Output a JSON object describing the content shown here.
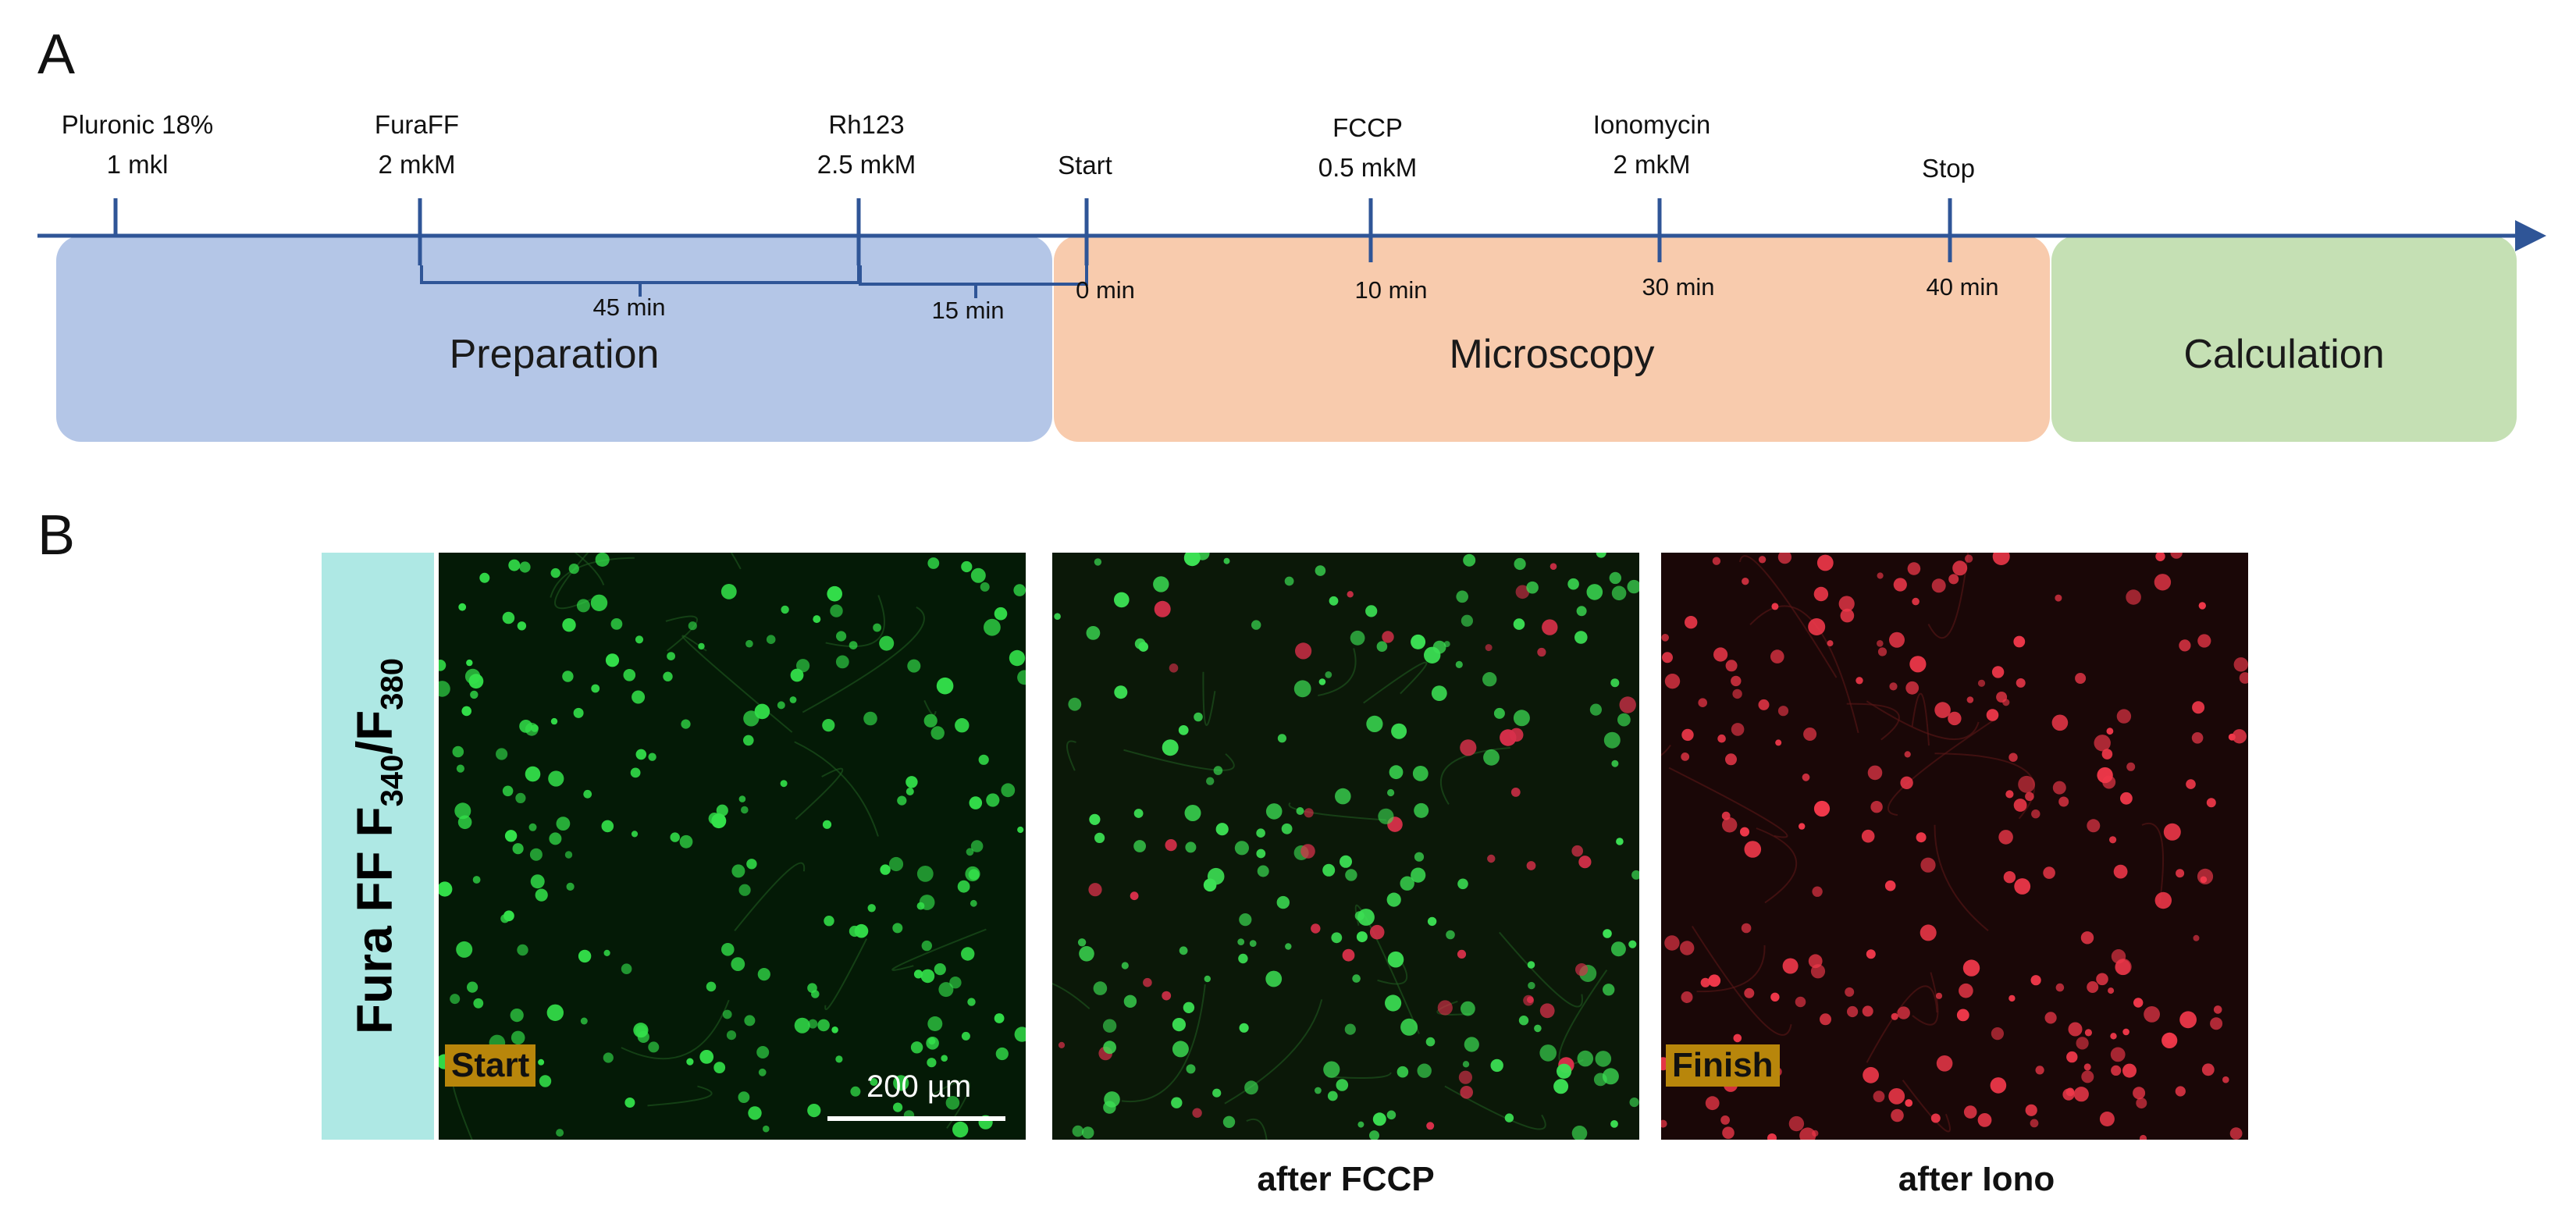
{
  "panel_letters": {
    "a": "A",
    "b": "B"
  },
  "timeline": {
    "events": [
      {
        "id": "pluronic",
        "line1": "Pluronic 18%",
        "line2": "1 mkl"
      },
      {
        "id": "furaff",
        "line1": "FuraFF",
        "line2": "2 mkM"
      },
      {
        "id": "rh123",
        "line1": "Rh123",
        "line2": "2.5 mkM"
      },
      {
        "id": "start",
        "line1": "Start",
        "line2": ""
      },
      {
        "id": "fccp",
        "line1": "FCCP",
        "line2": "0.5 mkM"
      },
      {
        "id": "ionomycin",
        "line1": "Ionomycin",
        "line2": "2 mkM"
      },
      {
        "id": "stop",
        "line1": "Stop",
        "line2": ""
      }
    ],
    "durations": [
      "45 min",
      "15 min"
    ],
    "times": [
      "0 min",
      "10 min",
      "30 min",
      "40 min"
    ],
    "stages": [
      "Preparation",
      "Microscopy",
      "Calculation"
    ],
    "stage_colors": {
      "preparation": "#b4c6e7",
      "microscopy": "#f8cbad",
      "calculation": "#c5e0b4"
    },
    "axis_color": "#2f5597"
  },
  "images": {
    "side_label": {
      "main": "Fura FF F",
      "sub1": "340",
      "slash": "/F",
      "sub2": "380"
    },
    "side_label_color": "#aee8e4",
    "tags": {
      "start": "Start",
      "finish": "Finish"
    },
    "scale_bar": "200 µm",
    "captions": [
      "after FCCP",
      "after Iono"
    ]
  }
}
